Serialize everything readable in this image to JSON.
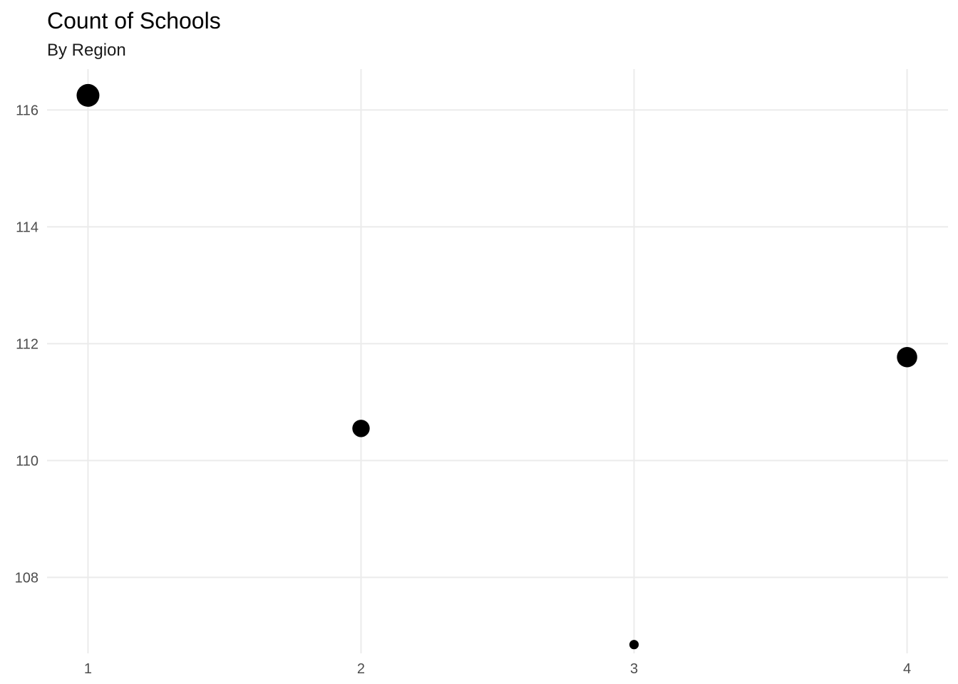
{
  "chart_data": {
    "type": "scatter",
    "title": "Count of Schools",
    "subtitle": "By Region",
    "xlabel": "",
    "ylabel": "",
    "x_ticks": [
      1,
      2,
      3,
      4
    ],
    "y_ticks": [
      108,
      110,
      112,
      114,
      116
    ],
    "xlim": [
      0.85,
      4.15
    ],
    "ylim": [
      106.7,
      116.7
    ],
    "grid": true,
    "legend": "none",
    "point_color": "#000000",
    "points": [
      {
        "x": 1,
        "y": 116.25,
        "size": 4
      },
      {
        "x": 2,
        "y": 110.55,
        "size": 2
      },
      {
        "x": 3,
        "y": 106.85,
        "size": 0.3
      },
      {
        "x": 4,
        "y": 111.77,
        "size": 3
      }
    ]
  }
}
